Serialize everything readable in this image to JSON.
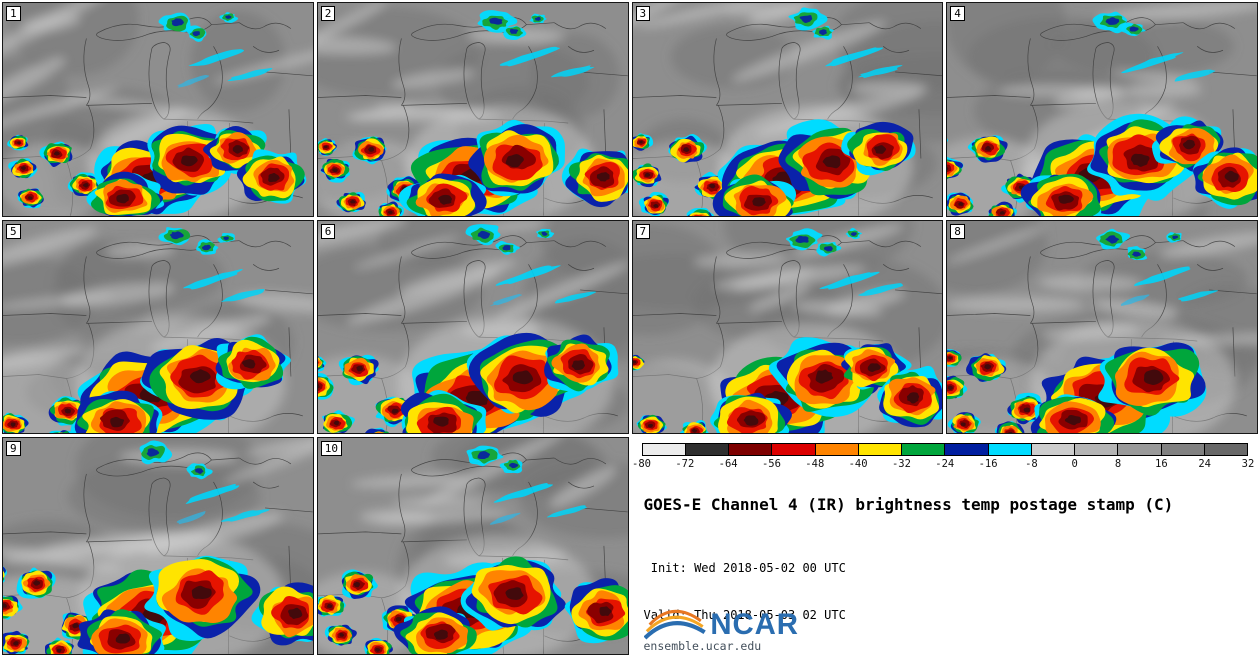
{
  "product": {
    "title": "GOES-E Channel 4 (IR) brightness temp postage stamp (C)",
    "init_line": " Init: Wed 2018-05-02 00 UTC",
    "valid_line": "Valid: Thu 2018-05-03 02 UTC",
    "units": "C",
    "logo_text": "NCAR",
    "logo_caption": "ensemble.ucar.edu"
  },
  "panels": [
    {
      "label": "1"
    },
    {
      "label": "2"
    },
    {
      "label": "3"
    },
    {
      "label": "4"
    },
    {
      "label": "5"
    },
    {
      "label": "6"
    },
    {
      "label": "7"
    },
    {
      "label": "8"
    },
    {
      "label": "9"
    },
    {
      "label": "10"
    }
  ],
  "colorbar": {
    "tick_labels": [
      "-80",
      "-72",
      "-64",
      "-56",
      "-48",
      "-40",
      "-32",
      "-24",
      "-16",
      "-8",
      "0",
      "8",
      "16",
      "24",
      "32"
    ],
    "segment_colors": [
      "#ececec",
      "#2f2f2f",
      "#7e0000",
      "#dc0000",
      "#ff8400",
      "#ffe400",
      "#00a63c",
      "#001ea0",
      "#00dcff",
      "#cdcdcd",
      "#b4b4b4",
      "#9a9a9a",
      "#818181",
      "#686868"
    ]
  },
  "chart_data": {
    "type": "heatmap",
    "title": "GOES-E Channel 4 (IR) brightness temp postage stamp (C)",
    "legend_ticks": [
      -80,
      -72,
      -64,
      -56,
      -48,
      -40,
      -32,
      -24,
      -16,
      -8,
      0,
      8,
      16,
      24,
      32
    ],
    "units": "C",
    "ensemble_members": [
      "1",
      "2",
      "3",
      "4",
      "5",
      "6",
      "7",
      "8",
      "9",
      "10"
    ],
    "legend_position": "bottom-right"
  }
}
